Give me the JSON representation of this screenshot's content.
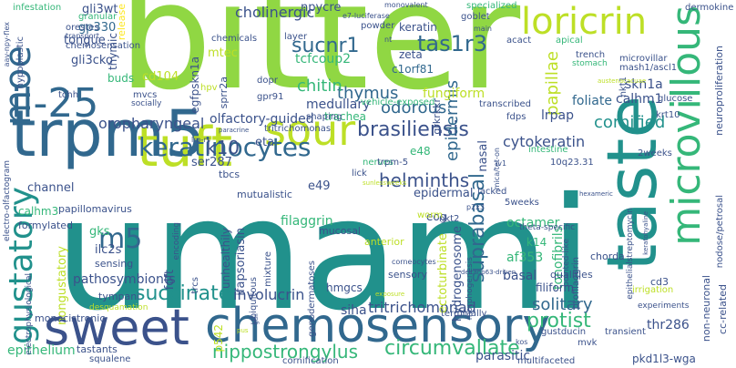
{
  "colors": {
    "background": "#ffffff",
    "dark_purple": "#440154",
    "indigo": "#3b528b",
    "blue": "#31688e",
    "teal": "#21918c",
    "green": "#35b779",
    "light_green": "#90d743",
    "yellow": "#fde725"
  },
  "words": [
    {
      "text": "bitter",
      "color": "#90d743"
    },
    {
      "text": "umami",
      "color": "#21918c"
    },
    {
      "text": "trpm5",
      "color": "#31688e"
    },
    {
      "text": "tuft",
      "color": "#bddf26"
    },
    {
      "text": "sour",
      "color": "#bddf26"
    },
    {
      "text": "sweet",
      "color": "#3b528b"
    },
    {
      "text": "chemosensory",
      "color": "#31688e"
    },
    {
      "text": "taste",
      "color": "#21918c"
    },
    {
      "text": "microvillous",
      "color": "#35b779"
    },
    {
      "text": "il-25",
      "color": "#31688e"
    },
    {
      "text": "moe",
      "color": "#31688e"
    },
    {
      "text": "keratinocytes",
      "color": "#31688e"
    },
    {
      "text": "loricrin",
      "color": "#bddf26"
    },
    {
      "text": "gustatory",
      "color": "#21918c"
    },
    {
      "text": "sucnr1",
      "color": "#31688e"
    },
    {
      "text": "tas1r3",
      "color": "#31688e"
    },
    {
      "text": "m5",
      "color": "#31688e"
    },
    {
      "text": "succinate",
      "color": "#21918c"
    },
    {
      "text": "circumvallate",
      "color": "#35b779"
    },
    {
      "text": "protist",
      "color": "#35b779"
    },
    {
      "text": "brasiliensis",
      "color": "#3b528b"
    },
    {
      "text": "helminths",
      "color": "#3b528b"
    },
    {
      "text": "thymus",
      "color": "#31688e"
    },
    {
      "text": "chitin",
      "color": "#35b779"
    },
    {
      "text": "odorous",
      "color": "#31688e"
    },
    {
      "text": "epidermis",
      "color": "#31688e"
    },
    {
      "text": "suprabasal",
      "color": "#31688e"
    },
    {
      "text": "papillae",
      "color": "#bddf26"
    },
    {
      "text": "nippostrongylus",
      "color": "#35b779"
    },
    {
      "text": "k10",
      "color": "#3b528b"
    },
    {
      "text": "cornified",
      "color": "#21918c"
    },
    {
      "text": "solitary",
      "color": "#31688e"
    },
    {
      "text": "involucrin",
      "color": "#3b528b"
    },
    {
      "text": "tritrichomonad",
      "color": "#3b528b"
    },
    {
      "text": "cytokeratin",
      "color": "#3b528b"
    },
    {
      "text": "cholinergic",
      "color": "#3b528b"
    },
    {
      "text": "oropharyngeal",
      "color": "#3b528b"
    },
    {
      "text": "olfactory-guided",
      "color": "#3b528b"
    },
    {
      "text": "filaggrin",
      "color": "#35b779"
    },
    {
      "text": "octamer",
      "color": "#35b779"
    },
    {
      "text": "af353",
      "color": "#35b779"
    },
    {
      "text": "tonofibrils",
      "color": "#35b779"
    },
    {
      "text": "ectoturbinate",
      "color": "#bddf26"
    },
    {
      "text": "hydrogenosome",
      "color": "#3b528b"
    },
    {
      "text": "fungiform",
      "color": "#bddf26"
    },
    {
      "text": "foliate",
      "color": "#31688e"
    },
    {
      "text": "lrpap",
      "color": "#3b528b"
    },
    {
      "text": "skn1a",
      "color": "#3b528b"
    },
    {
      "text": "calhm1",
      "color": "#3b528b"
    },
    {
      "text": "thr286",
      "color": "#3b528b"
    },
    {
      "text": "basal",
      "color": "#3b528b"
    },
    {
      "text": "parasitic",
      "color": "#3b528b"
    },
    {
      "text": "pathosymbionts",
      "color": "#3b528b"
    },
    {
      "text": "nongustatory",
      "color": "#bddf26"
    },
    {
      "text": "epithelium",
      "color": "#35b779"
    },
    {
      "text": "ifapsoriasin",
      "color": "#3b528b"
    },
    {
      "text": "unhealthily",
      "color": "#3b528b"
    },
    {
      "text": "siha",
      "color": "#3b528b"
    },
    {
      "text": "tcfcoup2",
      "color": "#35b779"
    },
    {
      "text": "medullary",
      "color": "#3b528b"
    },
    {
      "text": "trachea",
      "color": "#35b779"
    },
    {
      "text": "ser287",
      "color": "#3b528b"
    },
    {
      "text": "eta",
      "color": "#3b528b"
    },
    {
      "text": "e48",
      "color": "#35b779"
    },
    {
      "text": "e49",
      "color": "#3b528b"
    },
    {
      "text": "nasal",
      "color": "#3b528b"
    },
    {
      "text": "epidermal",
      "color": "#3b528b"
    },
    {
      "text": "channel",
      "color": "#3b528b"
    },
    {
      "text": "gks",
      "color": "#35b779"
    },
    {
      "text": "ilc2s",
      "color": "#3b528b"
    },
    {
      "text": "fdft",
      "color": "#3b528b"
    },
    {
      "text": "mtec",
      "color": "#bddf26"
    },
    {
      "text": "cd104",
      "color": "#bddf26"
    },
    {
      "text": "gp330",
      "color": "#31688e"
    },
    {
      "text": "gli3wt",
      "color": "#3b528b"
    },
    {
      "text": "gli3cko",
      "color": "#3b528b"
    },
    {
      "text": "tongue",
      "color": "#3b528b"
    },
    {
      "text": "buds",
      "color": "#35b779"
    },
    {
      "text": "calhm3",
      "color": "#35b779"
    },
    {
      "text": "npycre",
      "color": "#3b528b"
    },
    {
      "text": "zeta",
      "color": "#3b528b"
    },
    {
      "text": "c1orf81",
      "color": "#31688e"
    },
    {
      "text": "grkrkkr",
      "color": "#3b528b"
    },
    {
      "text": "keratin",
      "color": "#3b528b"
    },
    {
      "text": "egfpskn1a",
      "color": "#3b528b"
    },
    {
      "text": "sprr2a",
      "color": "#3b528b"
    },
    {
      "text": "thymic",
      "color": "#3b528b"
    },
    {
      "text": "hmgcs",
      "color": "#3b528b"
    },
    {
      "text": "p542",
      "color": "#bddf26"
    },
    {
      "text": "tbcs",
      "color": "#3b528b"
    },
    {
      "text": "eog",
      "color": "#3b528b"
    },
    {
      "text": "k14",
      "color": "#35b779"
    },
    {
      "text": "filiform",
      "color": "#3b528b"
    },
    {
      "text": "qualities",
      "color": "#3b528b"
    },
    {
      "text": "chorda",
      "color": "#3b528b"
    },
    {
      "text": "cd3",
      "color": "#3b528b"
    },
    {
      "text": "mucosal",
      "color": "#3b528b"
    },
    {
      "text": "anterior",
      "color": "#bddf26"
    },
    {
      "text": "sensory",
      "color": "#3b528b"
    },
    {
      "text": "sensing",
      "color": "#3b528b"
    },
    {
      "text": "tympani",
      "color": "#3b528b"
    },
    {
      "text": "formylated",
      "color": "#3b528b"
    },
    {
      "text": "papillomavirus",
      "color": "#3b528b"
    },
    {
      "text": "mutualistic",
      "color": "#3b528b"
    },
    {
      "text": "monocistronic",
      "color": "#3b528b"
    },
    {
      "text": "tastants",
      "color": "#3b528b"
    },
    {
      "text": "squalene",
      "color": "#3b528b"
    },
    {
      "text": "cornification",
      "color": "#3b528b"
    },
    {
      "text": "multifaceted",
      "color": "#3b528b"
    },
    {
      "text": "pkd1l3-wga",
      "color": "#3b528b"
    },
    {
      "text": "cc-related",
      "color": "#3b528b"
    },
    {
      "text": "non-neuronal",
      "color": "#3b528b"
    },
    {
      "text": "nodose/petrosal",
      "color": "#3b528b"
    },
    {
      "text": "neuroproliferation",
      "color": "#3b528b"
    },
    {
      "text": "dermokine",
      "color": "#3b528b"
    },
    {
      "text": "glucose",
      "color": "#3b528b"
    },
    {
      "text": "krt10",
      "color": "#3b528b"
    },
    {
      "text": "nkt1",
      "color": "#3b528b"
    },
    {
      "text": "nkt2",
      "color": "#3b528b"
    },
    {
      "text": "2weeks",
      "color": "#3b528b"
    },
    {
      "text": "5weeks",
      "color": "#3b528b"
    },
    {
      "text": "10q23.31",
      "color": "#3b528b"
    },
    {
      "text": "lacked",
      "color": "#3b528b"
    },
    {
      "text": "terminally",
      "color": "#3b528b"
    },
    {
      "text": "transient",
      "color": "#3b528b"
    },
    {
      "text": "intestine",
      "color": "#35b779"
    },
    {
      "text": "trench",
      "color": "#3b528b"
    },
    {
      "text": "stomach",
      "color": "#35b779"
    },
    {
      "text": "goblet",
      "color": "#3b528b"
    },
    {
      "text": "acact",
      "color": "#3b528b"
    },
    {
      "text": "apical",
      "color": "#35b779"
    },
    {
      "text": "specialized",
      "color": "#35b779"
    },
    {
      "text": "infestation",
      "color": "#35b779"
    },
    {
      "text": "granular",
      "color": "#35b779"
    },
    {
      "text": "orestes",
      "color": "#3b528b"
    },
    {
      "text": "transport",
      "color": "#3b528b"
    },
    {
      "text": "chemosensation",
      "color": "#3b528b"
    },
    {
      "text": "hypoplastic",
      "color": "#3b528b"
    },
    {
      "text": "tchh",
      "color": "#3b528b"
    },
    {
      "text": "mvcs",
      "color": "#3b528b"
    },
    {
      "text": "socially",
      "color": "#3b528b"
    },
    {
      "text": "hpv",
      "color": "#bddf26"
    },
    {
      "text": "dopr",
      "color": "#3b528b"
    },
    {
      "text": "gpr91",
      "color": "#3b528b"
    },
    {
      "text": "chemicals",
      "color": "#3b528b"
    },
    {
      "text": "layer",
      "color": "#3b528b"
    },
    {
      "text": "powder",
      "color": "#3b528b"
    },
    {
      "text": "vehicle-exposed",
      "color": "#35b779"
    },
    {
      "text": "shaping",
      "color": "#3b528b"
    },
    {
      "text": "tritrichomonas",
      "color": "#3b528b"
    },
    {
      "text": "nerves",
      "color": "#35b779"
    },
    {
      "text": "lick",
      "color": "#3b528b"
    },
    {
      "text": "trpm-5",
      "color": "#3b528b"
    },
    {
      "text": "fdps",
      "color": "#3b528b"
    },
    {
      "text": "transcribed",
      "color": "#3b528b"
    },
    {
      "text": "mash1/ascl1",
      "color": "#3b528b"
    },
    {
      "text": "microvillar",
      "color": "#3b528b"
    },
    {
      "text": "profilaggrin",
      "color": "#3b528b"
    },
    {
      "text": "worm",
      "color": "#bddf26"
    },
    {
      "text": "pointed-like",
      "color": "#3b528b"
    },
    {
      "text": "theta-specific",
      "color": "#3b528b"
    },
    {
      "text": "encoding",
      "color": "#3b528b"
    },
    {
      "text": "trcs",
      "color": "#3b528b"
    },
    {
      "text": "ubiquitous",
      "color": "#3b528b"
    },
    {
      "text": "mixture",
      "color": "#3b528b"
    },
    {
      "text": "genodermatoses",
      "color": "#3b528b"
    },
    {
      "text": "morphogenesis",
      "color": "#3b528b"
    },
    {
      "text": "gustducin",
      "color": "#3b528b"
    },
    {
      "text": "mvk",
      "color": "#3b528b"
    },
    {
      "text": "kos",
      "color": "#3b528b"
    },
    {
      "text": "experiments",
      "color": "#3b528b"
    },
    {
      "text": "irrigation",
      "color": "#bddf26"
    },
    {
      "text": "epithelialstreptomycin",
      "color": "#3b528b"
    },
    {
      "text": "desquamation",
      "color": "#bddf26"
    },
    {
      "text": "electrophysiological",
      "color": "#3b528b"
    },
    {
      "text": "electro-olfactogram",
      "color": "#3b528b"
    },
    {
      "text": "aav-npy-flex",
      "color": "#3b528b"
    },
    {
      "text": "e7-luciferase",
      "color": "#3b528b"
    },
    {
      "text": "nt",
      "color": "#3b528b"
    },
    {
      "text": "main",
      "color": "#3b528b"
    },
    {
      "text": "monovalent",
      "color": "#3b528b"
    },
    {
      "text": "lrp-rs",
      "color": "#3b528b"
    },
    {
      "text": "paracrine",
      "color": "#3b528b"
    },
    {
      "text": "sunlessweeks",
      "color": "#bddf26"
    },
    {
      "text": "mica/tet-on",
      "color": "#3b528b"
    },
    {
      "text": "p2x3",
      "color": "#3b528b"
    },
    {
      "text": "deltanp63-driven",
      "color": "#3b528b"
    },
    {
      "text": "hexameric",
      "color": "#3b528b"
    },
    {
      "text": "keratohyaline",
      "color": "#3b528b"
    },
    {
      "text": "austenacacuae",
      "color": "#bddf26"
    },
    {
      "text": "exposure",
      "color": "#bddf26"
    },
    {
      "text": "iv1",
      "color": "#3b528b"
    },
    {
      "text": "corneocytes",
      "color": "#3b528b"
    },
    {
      "text": "gaii",
      "color": "#3b528b"
    },
    {
      "text": "pus",
      "color": "#bddf26"
    },
    {
      "text": "release",
      "color": "#fde725"
    }
  ]
}
